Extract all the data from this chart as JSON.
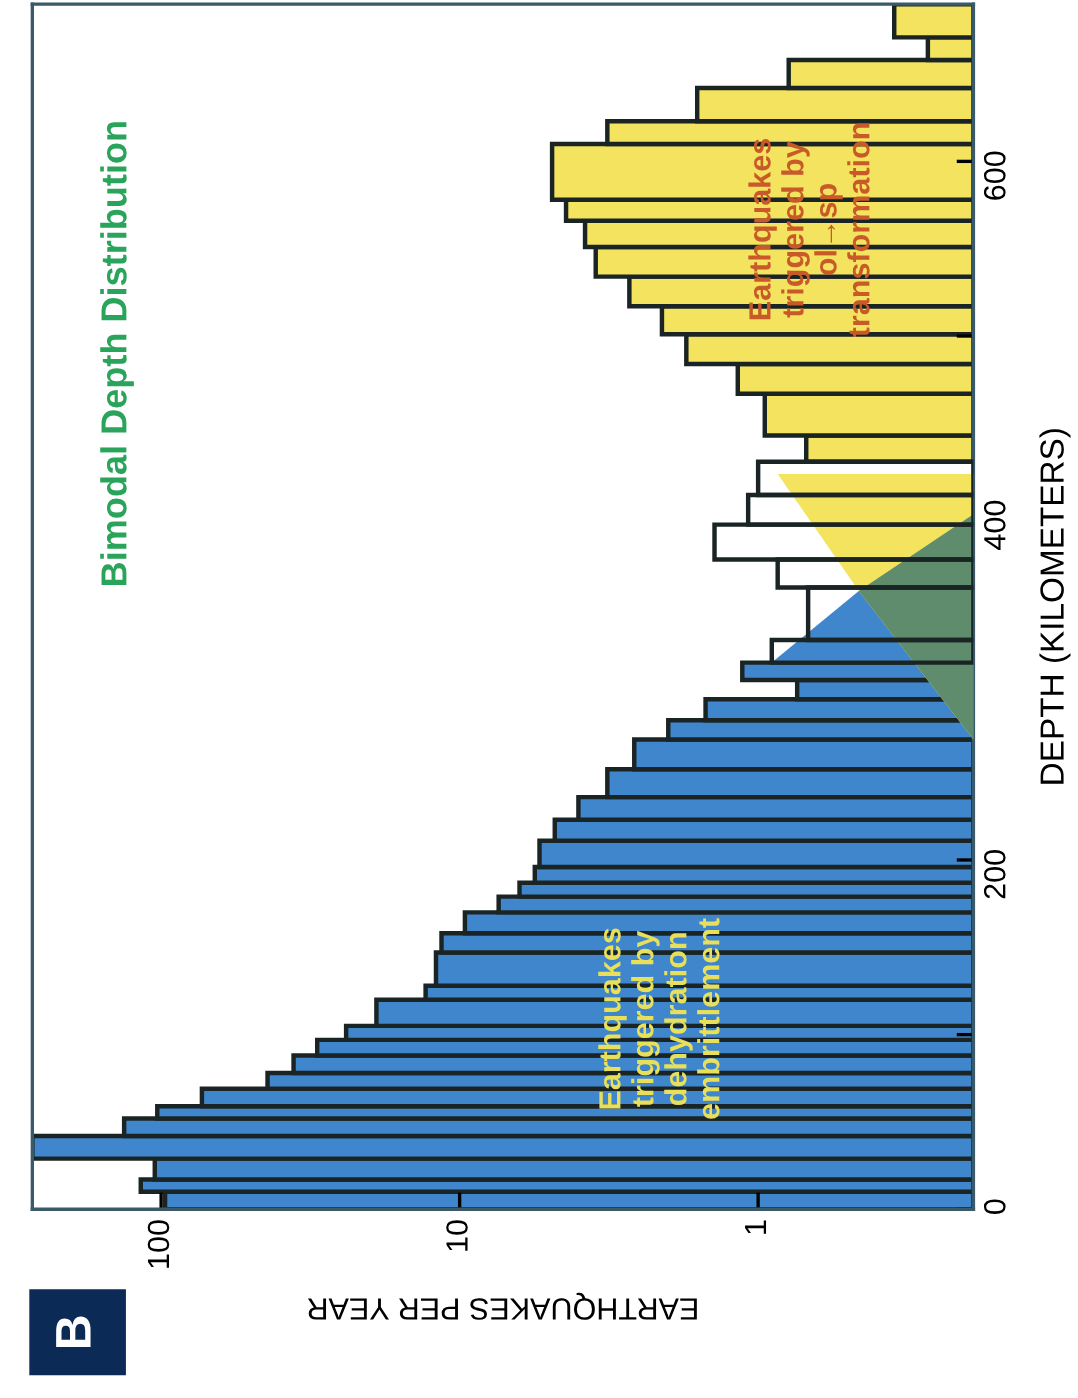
{
  "chart_data": {
    "type": "histogram",
    "orientation": "horizontal",
    "log": "x",
    "title": "Bimodal Depth Distribution",
    "xlabel": "EARTHQUAKES PER YEAR",
    "ylabel": "DEPTH (KILOMETERS)",
    "bins": [
      0,
      10,
      17,
      29,
      42,
      52,
      59,
      69,
      78,
      88,
      97,
      105,
      120,
      128,
      147,
      158,
      170,
      179,
      187,
      196,
      211,
      223,
      236,
      252,
      269,
      280,
      292,
      303,
      313,
      326,
      356,
      372,
      392,
      409,
      428,
      443,
      467,
      484,
      501,
      517,
      534,
      551,
      566,
      578,
      610,
      623,
      642,
      658,
      671,
      690
    ],
    "values": [
      97,
      117,
      105,
      270,
      133,
      103,
      73,
      44,
      36,
      30,
      24,
      19,
      13,
      12,
      11.5,
      9.6,
      7.4,
      6.3,
      5.6,
      5.4,
      4.8,
      4.0,
      3.2,
      2.6,
      2.0,
      1.5,
      0.74,
      1.13,
      0.9,
      0.68,
      0.86,
      1.4,
      1.08,
      1.0,
      0.69,
      0.95,
      1.17,
      1.74,
      2.1,
      2.7,
      3.5,
      3.8,
      4.4,
      4.9,
      3.2,
      1.6,
      0.79,
      0.27,
      0.35
    ],
    "colors": [
      "#3f86cc",
      "#3f86cc",
      "#3f86cc",
      "#3f86cc",
      "#3f86cc",
      "#3f86cc",
      "#3f86cc",
      "#3f86cc",
      "#3f86cc",
      "#3f86cc",
      "#3f86cc",
      "#3f86cc",
      "#3f86cc",
      "#3f86cc",
      "#3f86cc",
      "#3f86cc",
      "#3f86cc",
      "#3f86cc",
      "#3f86cc",
      "#3f86cc",
      "#3f86cc",
      "#3f86cc",
      "#3f86cc",
      "#3f86cc",
      "#3f86cc",
      "#3f86cc",
      "#3f86cc",
      "#3f86cc",
      null,
      null,
      null,
      null,
      null,
      null,
      "#f3e35e",
      "#f3e35e",
      "#f3e35e",
      "#f3e35e",
      "#f3e35e",
      "#f3e35e",
      "#f3e35e",
      "#f3e35e",
      "#f3e35e",
      "#f3e35e",
      "#f3e35e",
      "#f3e35e",
      "#f3e35e",
      "#f3e35e",
      "#f3e35e"
    ],
    "series": [
      {
        "type": "area",
        "color": "#3f86cc",
        "x": [
          313,
          354,
          398
        ],
        "values": [
          0.9,
          0.46,
          0.19
        ]
      },
      {
        "type": "area",
        "color": "#f3e35e",
        "x": [
          269,
          354,
          421
        ],
        "values": [
          0.19,
          0.46,
          0.86
        ]
      },
      {
        "type": "area",
        "color": "#5e8c6c",
        "x": [
          269,
          354,
          398
        ],
        "values": [
          0.19,
          0.46,
          0.19
        ]
      }
    ],
    "xlim": [
      270,
      0.19
    ],
    "xticks": [
      100,
      10,
      1
    ],
    "ylim": [
      0,
      690
    ],
    "yticks": [
      0,
      {
        "value": 100,
        "label": null
      },
      200,
      {
        "value": 300,
        "label": null
      },
      400,
      {
        "value": 500,
        "label": null
      },
      600
    ],
    "grid": false,
    "annotations": [
      {
        "text": "Earthquakes\ntriggered by\ndehydration\nembrittlement",
        "x": 2.1,
        "y": 109
      },
      {
        "text": "Earthquakes\ntriggered by\nol→sp\ntransformation",
        "x": 0.66,
        "y": 561
      },
      "B"
    ]
  }
}
